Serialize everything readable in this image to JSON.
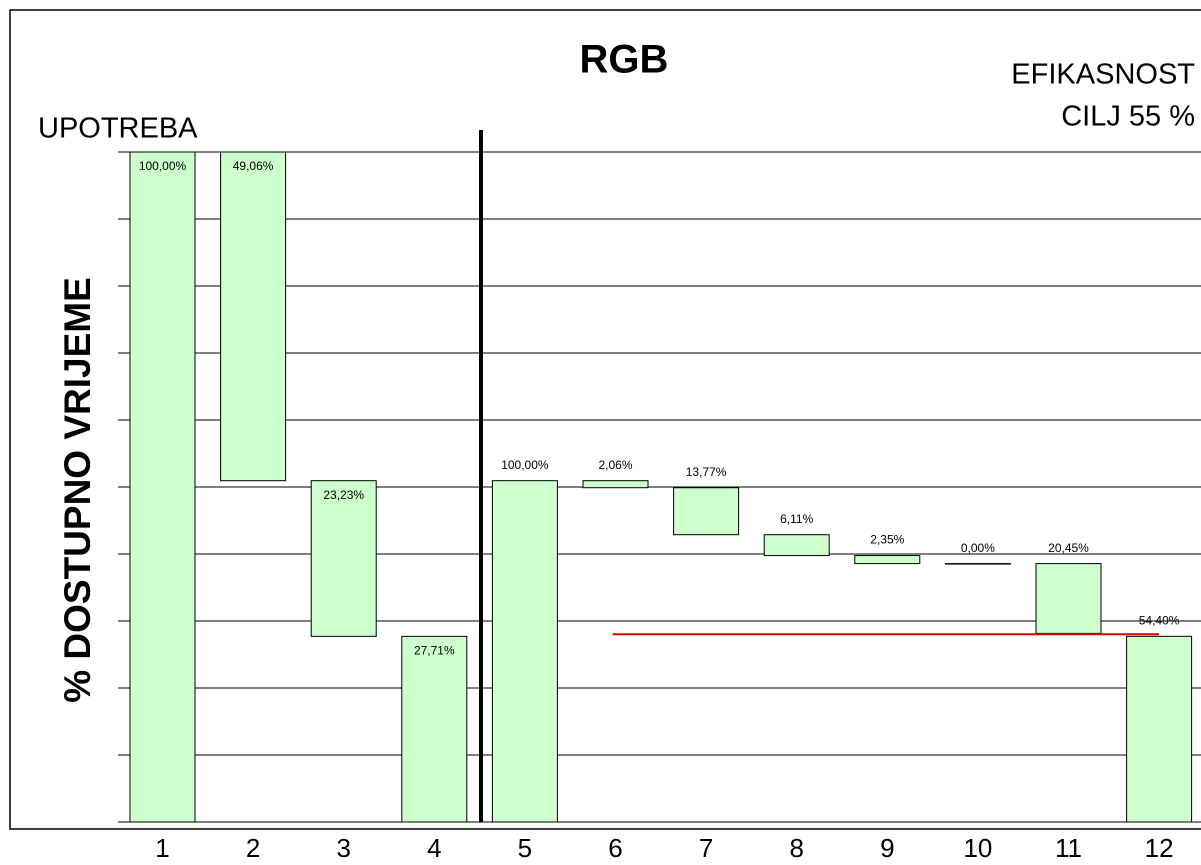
{
  "chart_data": [
    {
      "type": "waterfall",
      "title": "RGB",
      "ylabel": "% DOSTUPNO VRIJEME",
      "annotation": "UPOTREBA",
      "categories": [
        "1",
        "2",
        "3",
        "4"
      ],
      "values": [
        100,
        49.06,
        23.23,
        27.71
      ],
      "value_labels": [
        "100,00%",
        "49,06%",
        "23,23%",
        "27,71%"
      ],
      "label_position": "inside",
      "color": "#ccffcc",
      "ylim": [
        0,
        100
      ],
      "yticks": [
        0,
        10,
        20,
        30,
        40,
        50,
        60,
        70,
        80,
        90,
        100
      ],
      "grid": true
    },
    {
      "type": "waterfall",
      "annotation": "EFIKASNOST",
      "categories": [
        "5",
        "6",
        "7",
        "8",
        "9",
        "10",
        "11",
        "12"
      ],
      "values": [
        100,
        2.06,
        13.77,
        6.11,
        2.35,
        0,
        20.45,
        54.4
      ],
      "value_labels": [
        "100,00%",
        "2,06%",
        "13,77%",
        "6,11%",
        "2,35%",
        "0,00%",
        "20,45%",
        "54,40%"
      ],
      "label_position": "above",
      "color": "#ccffcc",
      "target": 55,
      "target_label": "CILJ 55 %",
      "target_color": "#e00000",
      "ylim": [
        0,
        196.3
      ]
    }
  ]
}
